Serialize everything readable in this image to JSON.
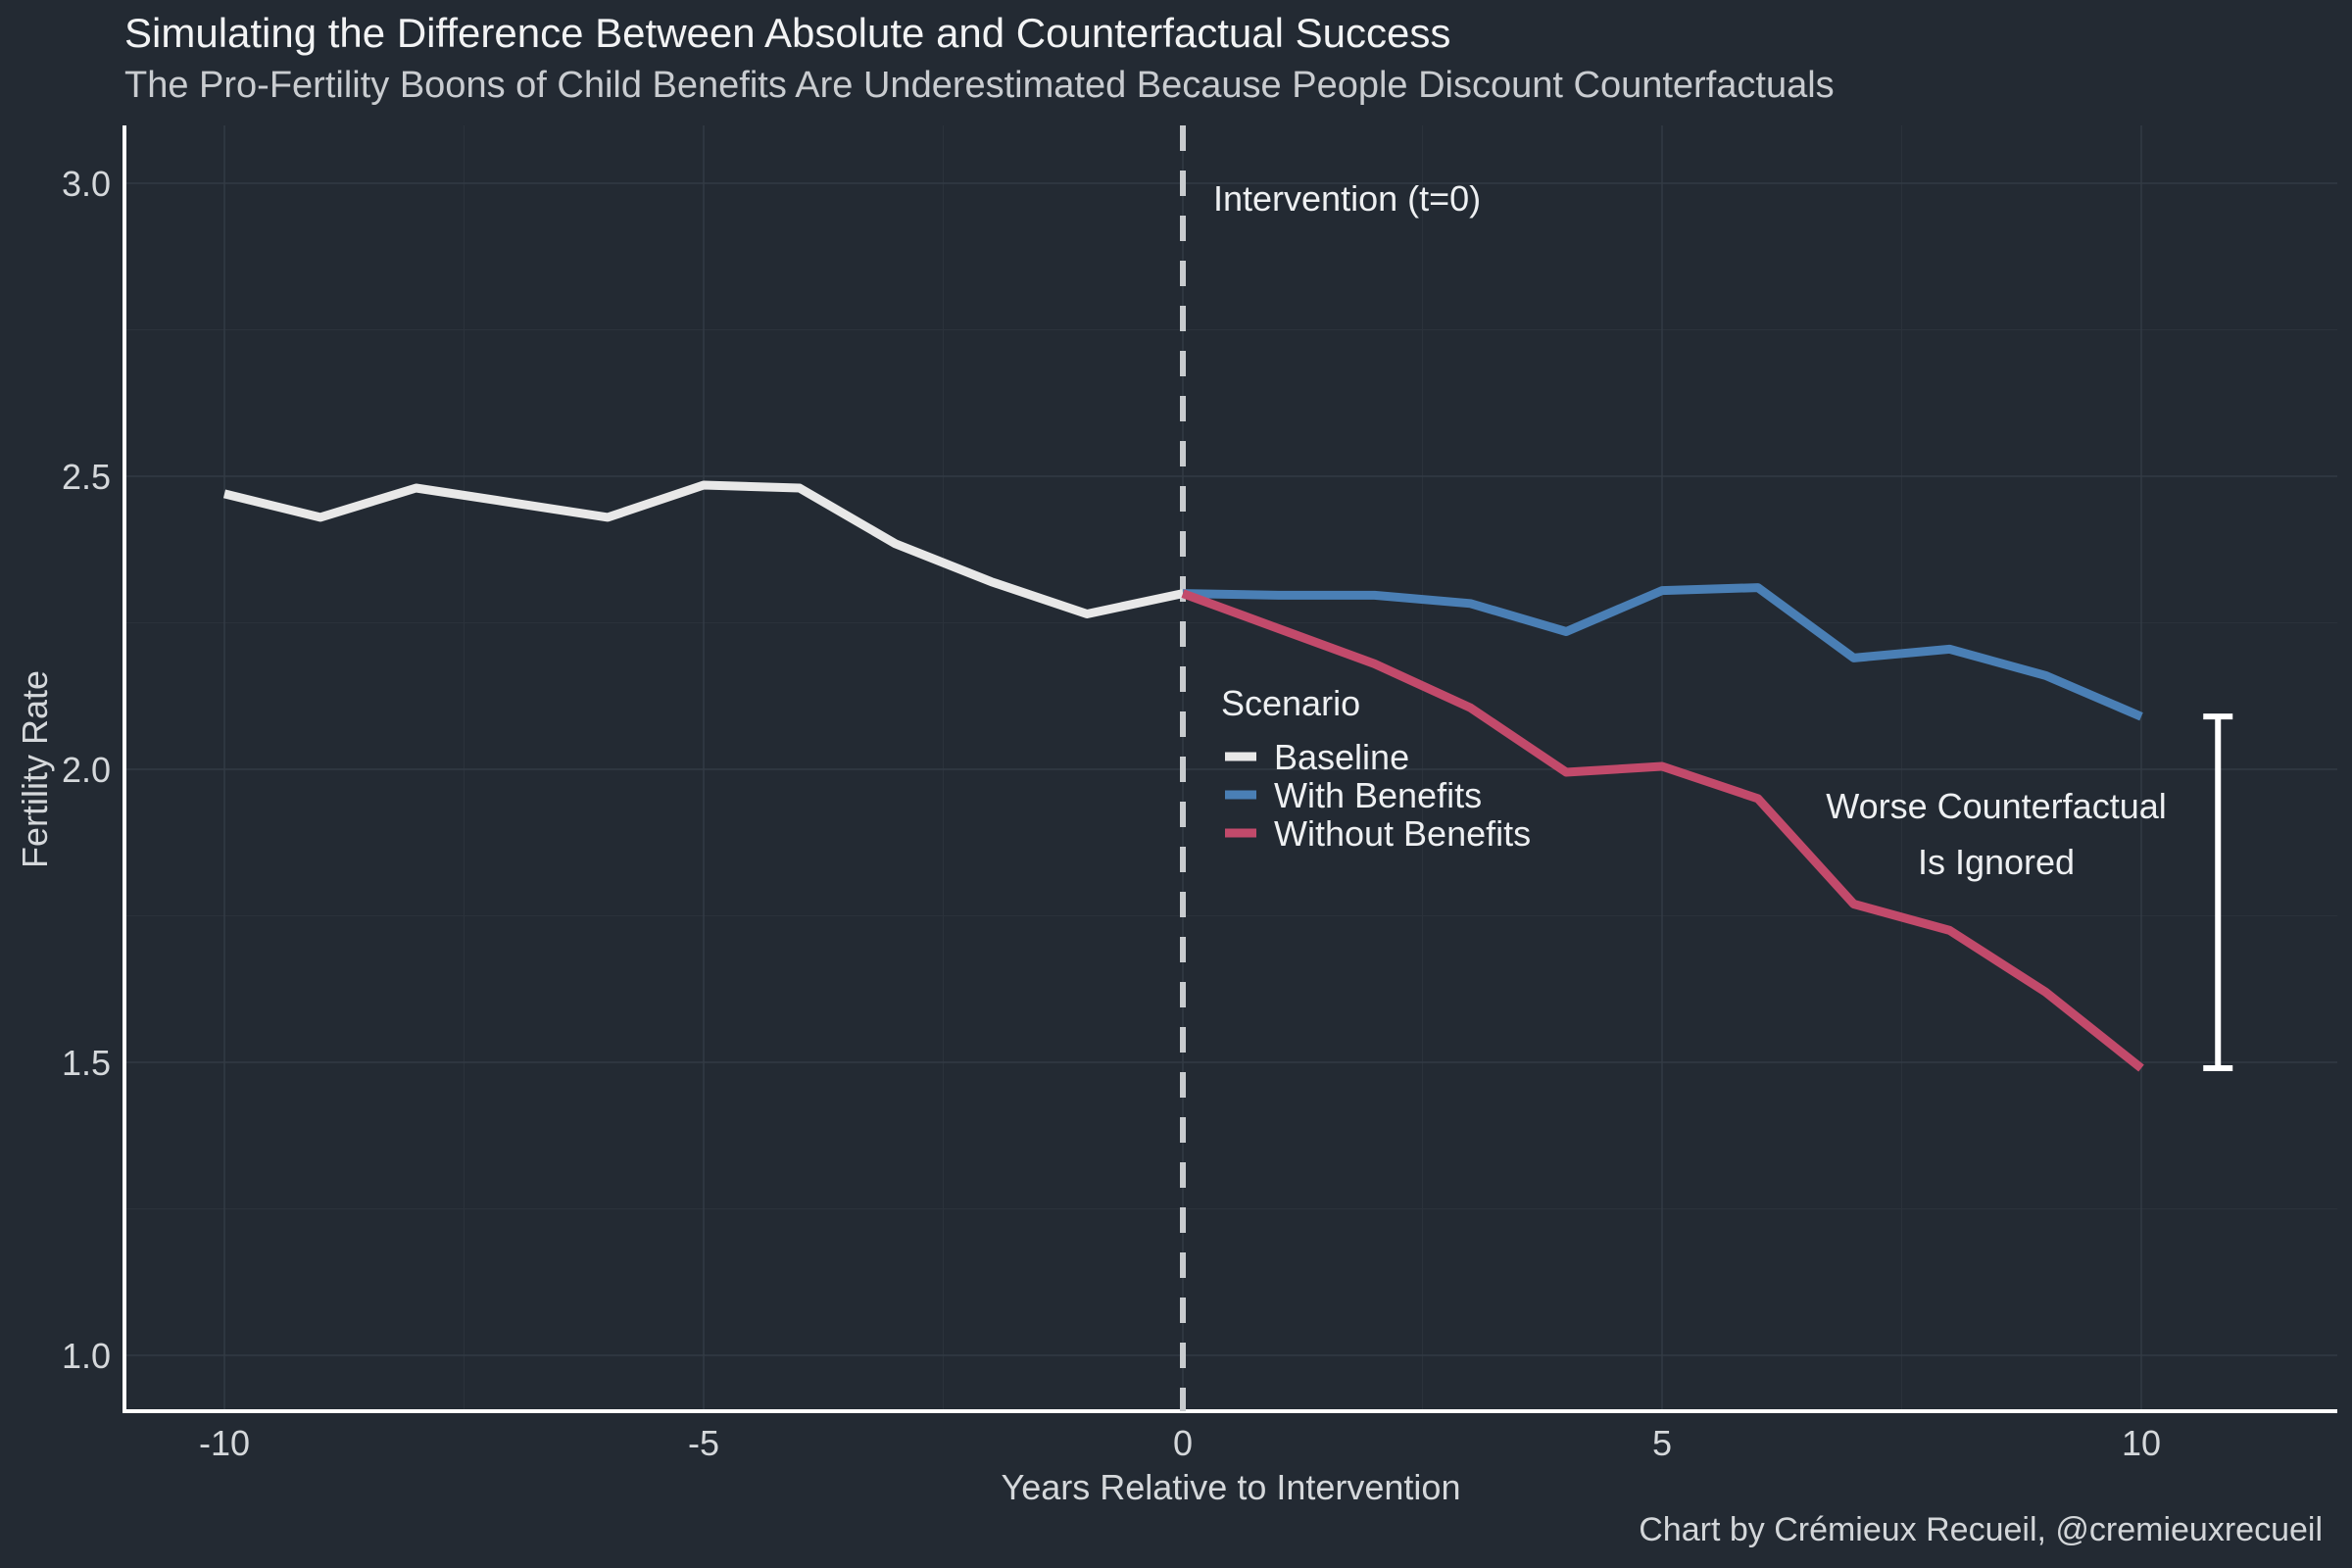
{
  "title": "Simulating the Difference Between Absolute and Counterfactual Success",
  "subtitle": "The Pro-Fertility Boons of Child Benefits Are Underestimated Because People Discount Counterfactuals",
  "caption": "Chart by Crémieux Recueil, @cremieuxrecueil",
  "chart_data": {
    "type": "line",
    "xlabel": "Years Relative to Intervention",
    "ylabel": "Fertility Rate",
    "xlim": [
      -11,
      12
    ],
    "ylim": [
      0.9,
      3.1
    ],
    "x_ticks": [
      -10,
      -5,
      0,
      5,
      10
    ],
    "x_tick_labels": [
      "-10",
      "-5",
      "0",
      "5",
      "10"
    ],
    "y_ticks": [
      1.0,
      1.5,
      2.0,
      2.5,
      3.0
    ],
    "y_tick_labels": [
      "1.0",
      "1.5",
      "2.0",
      "2.5",
      "3.0"
    ],
    "grid": true,
    "legend_title": "Scenario",
    "legend_position": "center",
    "series": [
      {
        "name": "Baseline",
        "color": "#e8e8e8",
        "x": [
          -10,
          -9,
          -8,
          -7,
          -6,
          -5,
          -4,
          -3,
          -2,
          -1,
          0
        ],
        "y": [
          2.47,
          2.43,
          2.48,
          2.455,
          2.43,
          2.485,
          2.48,
          2.385,
          2.32,
          2.265,
          2.3
        ]
      },
      {
        "name": "With Benefits",
        "color": "#4a7fb5",
        "x": [
          0,
          1,
          2,
          3,
          4,
          5,
          6,
          7,
          8,
          9,
          10
        ],
        "y": [
          2.3,
          2.297,
          2.297,
          2.283,
          2.235,
          2.305,
          2.31,
          2.19,
          2.205,
          2.16,
          2.09
        ]
      },
      {
        "name": "Without Benefits",
        "color": "#c24a6b",
        "x": [
          0,
          1,
          2,
          3,
          4,
          5,
          6,
          7,
          8,
          9,
          10
        ],
        "y": [
          2.3,
          2.24,
          2.18,
          2.105,
          1.995,
          2.005,
          1.95,
          1.77,
          1.725,
          1.62,
          1.49
        ]
      }
    ],
    "annotations": {
      "intervention_x": 0,
      "intervention_label": "Intervention (t=0)",
      "gap_label_line1": "Worse Counterfactual",
      "gap_label_line2": "Is Ignored",
      "gap_bar_x": 10.8,
      "gap_bar_from": 1.49,
      "gap_bar_to": 2.09
    }
  }
}
